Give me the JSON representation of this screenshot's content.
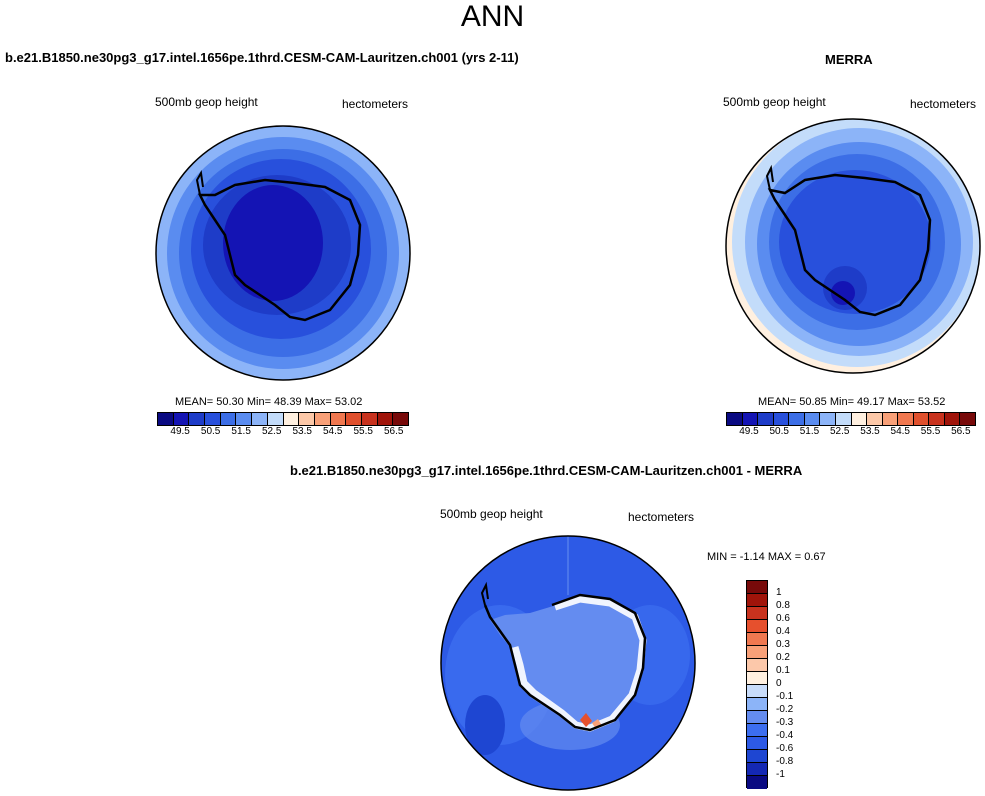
{
  "main_title": "ANN",
  "panels": [
    {
      "title": "b.e21.B1850.ne30pg3_g17.intel.1656pe.1thrd.CESM-CAM-Lauritzen.ch001 (yrs 2-11)",
      "field_label": "500mb geop height",
      "units": "hectometers",
      "stats": "MEAN=  50.30  Min=  48.39  Max=  53.02"
    },
    {
      "title": "MERRA",
      "field_label": "500mb geop height",
      "units": "hectometers",
      "stats": "MEAN=  50.85  Min=  49.17  Max=  53.52"
    },
    {
      "title": "b.e21.B1850.ne30pg3_g17.intel.1656pe.1thrd.CESM-CAM-Lauritzen.ch001 - MERRA",
      "field_label": "500mb geop height",
      "units": "hectometers",
      "stats": "MIN =  -1.14 MAX =   0.67"
    }
  ],
  "colorbar_abs": {
    "colors": [
      "#0a0a82",
      "#1414b4",
      "#1e3cc8",
      "#2850dc",
      "#3c6ee6",
      "#5a8cf0",
      "#8cb4f8",
      "#c3dcfa",
      "#fff0e0",
      "#fcc8a8",
      "#f8a078",
      "#f07850",
      "#e0502d",
      "#c8321e",
      "#a0140a",
      "#780a0a"
    ],
    "ticks": [
      "49.5",
      "50.5",
      "51.5",
      "52.5",
      "53.5",
      "54.5",
      "55.5",
      "56.5"
    ]
  },
  "colorbar_diff": {
    "colors": [
      "#0a0a82",
      "#1428b4",
      "#1e46d2",
      "#2d5ae6",
      "#3c6ef0",
      "#648cf0",
      "#8cb4f8",
      "#c8dcfa",
      "#fff0e0",
      "#fcc8aa",
      "#f8a078",
      "#f07850",
      "#e6502d",
      "#c8321e",
      "#a0140a",
      "#780a0a"
    ],
    "ticks": [
      "1",
      "0.8",
      "0.6",
      "0.4",
      "0.3",
      "0.2",
      "0.1",
      "0",
      "-0.1",
      "-0.2",
      "-0.3",
      "-0.4",
      "-0.6",
      "-0.8",
      "-1"
    ]
  }
}
